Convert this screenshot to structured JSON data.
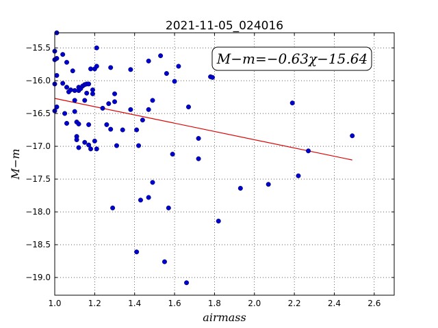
{
  "chart_data": {
    "type": "scatter",
    "title": "2021-11-05_024016",
    "xlabel": "airmass",
    "ylabel": "M−m",
    "annotation": "M−m=−0.63χ−15.64",
    "xlim": [
      1.0,
      2.7
    ],
    "ylim": [
      -19.27,
      -15.27
    ],
    "y_inverted": true,
    "grid": true,
    "x_ticks": [
      1.0,
      1.2,
      1.4,
      1.6,
      1.8,
      2.0,
      2.2,
      2.4,
      2.6
    ],
    "x_tick_labels": [
      "1.0",
      "1.2",
      "1.4",
      "1.6",
      "1.8",
      "2.0",
      "2.2",
      "2.4",
      "2.6"
    ],
    "y_ticks": [
      -15.5,
      -16.0,
      -16.5,
      -17.0,
      -17.5,
      -18.0,
      -18.5,
      -19.0
    ],
    "y_tick_labels": [
      "−15.5",
      "−16.0",
      "−16.5",
      "−17.0",
      "−17.5",
      "−18.0",
      "−18.5",
      "−19.0"
    ],
    "point_color": "#0000cc",
    "line_color": "#dd0000",
    "fit": {
      "slope": -0.63,
      "intercept": -15.64,
      "x_range": [
        1.0,
        2.49
      ]
    },
    "points": [
      [
        1.01,
        -15.27
      ],
      [
        1.0,
        -15.55
      ],
      [
        1.01,
        -15.66
      ],
      [
        1.0,
        -15.68
      ],
      [
        1.04,
        -15.6
      ],
      [
        1.06,
        -15.72
      ],
      [
        1.01,
        -15.92
      ],
      [
        1.0,
        -16.05
      ],
      [
        1.04,
        -16.04
      ],
      [
        1.06,
        -16.1
      ],
      [
        1.07,
        -16.17
      ],
      [
        1.08,
        -16.14
      ],
      [
        1.09,
        -15.85
      ],
      [
        1.1,
        -16.15
      ],
      [
        1.12,
        -16.1
      ],
      [
        1.12,
        -16.15
      ],
      [
        1.13,
        -16.12
      ],
      [
        1.14,
        -16.08
      ],
      [
        1.15,
        -16.06
      ],
      [
        1.16,
        -16.05
      ],
      [
        1.17,
        -16.05
      ],
      [
        1.16,
        -16.19
      ],
      [
        1.19,
        -16.14
      ],
      [
        1.19,
        -16.2
      ],
      [
        1.2,
        -15.82
      ],
      [
        1.18,
        -15.82
      ],
      [
        1.21,
        -15.78
      ],
      [
        1.21,
        -15.5
      ],
      [
        1.28,
        -15.8
      ],
      [
        1.38,
        -15.83
      ],
      [
        1.3,
        -16.2
      ],
      [
        1.3,
        -16.32
      ],
      [
        1.27,
        -16.35
      ],
      [
        1.24,
        -16.42
      ],
      [
        1.0,
        -16.46
      ],
      [
        1.01,
        -16.4
      ],
      [
        1.05,
        -16.5
      ],
      [
        1.06,
        -16.65
      ],
      [
        1.1,
        -16.3
      ],
      [
        1.15,
        -16.3
      ],
      [
        1.1,
        -16.47
      ],
      [
        1.11,
        -16.63
      ],
      [
        1.12,
        -16.66
      ],
      [
        1.17,
        -16.67
      ],
      [
        1.26,
        -16.67
      ],
      [
        1.28,
        -16.74
      ],
      [
        1.34,
        -16.75
      ],
      [
        1.38,
        -16.44
      ],
      [
        1.41,
        -16.75
      ],
      [
        1.44,
        -16.6
      ],
      [
        1.47,
        -16.44
      ],
      [
        1.49,
        -16.3
      ],
      [
        1.47,
        -15.7
      ],
      [
        1.53,
        -15.62
      ],
      [
        1.56,
        -15.89
      ],
      [
        1.6,
        -16.01
      ],
      [
        1.62,
        -15.78
      ],
      [
        1.67,
        -16.4
      ],
      [
        1.78,
        -15.94
      ],
      [
        1.79,
        -15.95
      ],
      [
        1.72,
        -16.88
      ],
      [
        1.72,
        -17.19
      ],
      [
        1.59,
        -17.12
      ],
      [
        1.11,
        -16.85
      ],
      [
        1.11,
        -16.9
      ],
      [
        1.15,
        -16.94
      ],
      [
        1.17,
        -16.98
      ],
      [
        1.2,
        -16.92
      ],
      [
        1.12,
        -17.02
      ],
      [
        1.18,
        -17.04
      ],
      [
        1.21,
        -17.04
      ],
      [
        1.31,
        -16.99
      ],
      [
        1.42,
        -16.99
      ],
      [
        1.49,
        -17.55
      ],
      [
        1.47,
        -17.78
      ],
      [
        1.43,
        -17.82
      ],
      [
        1.29,
        -17.94
      ],
      [
        1.57,
        -17.94
      ],
      [
        1.41,
        -18.61
      ],
      [
        1.55,
        -18.76
      ],
      [
        1.66,
        -19.08
      ],
      [
        1.82,
        -18.14
      ],
      [
        1.93,
        -17.64
      ],
      [
        2.07,
        -17.58
      ],
      [
        2.19,
        -16.34
      ],
      [
        2.22,
        -17.45
      ],
      [
        2.27,
        -17.07
      ],
      [
        2.49,
        -16.84
      ]
    ]
  }
}
